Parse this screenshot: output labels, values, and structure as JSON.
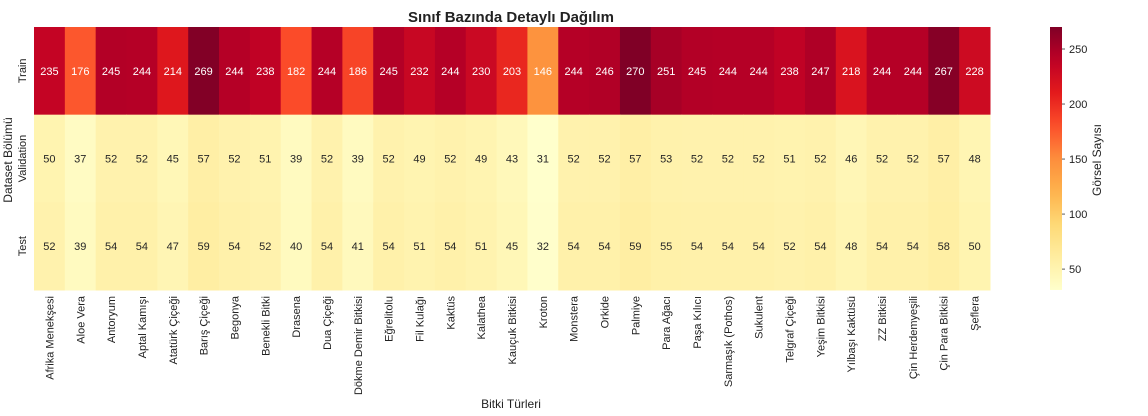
{
  "chart_data": {
    "type": "heatmap",
    "title": "Sınıf Bazında Detaylı Dağılım",
    "xlabel": "Bitki Türleri",
    "ylabel": "Dataset Bölümü",
    "colorbar_label": "Görsel Sayısı",
    "colorbar_ticks": [
      50,
      100,
      150,
      200,
      250
    ],
    "colorbar_range": [
      31,
      270
    ],
    "colormap": "YlOrRd",
    "categories": [
      "Afrika Menekşesi",
      "Aloe Vera",
      "Antoryum",
      "Aptal Kamışı",
      "Atatürk Çiçeği",
      "Barış Çiçeği",
      "Begonya",
      "Benekli Bitki",
      "Drasena",
      "Dua Çiçeği",
      "Dökme Demir Bitkisi",
      "Eğrelitolu",
      "Fil Kulağı",
      "Kaktüs",
      "Kalathea",
      "Kauçuk Bitkisi",
      "Kroton",
      "Monstera",
      "Orkide",
      "Palmiye",
      "Para Ağacı",
      "Paşa Kılıcı",
      "Sarmaşık (Pothos)",
      "Sukulent",
      "Telgraf Çiçeği",
      "Yeşim Bitkisi",
      "Yılbaşı Kaktüsü",
      "ZZ Bitkisi",
      "Çin Herdemyeşili",
      "Çin Para Bitkisi",
      "Şeflera"
    ],
    "rows": [
      "Train",
      "Validation",
      "Test"
    ],
    "values": [
      [
        235,
        176,
        245,
        244,
        214,
        269,
        244,
        238,
        182,
        244,
        186,
        245,
        232,
        244,
        230,
        203,
        146,
        244,
        246,
        270,
        251,
        245,
        244,
        244,
        238,
        247,
        218,
        244,
        244,
        267,
        228
      ],
      [
        50,
        37,
        52,
        52,
        45,
        57,
        52,
        51,
        39,
        52,
        39,
        52,
        49,
        52,
        49,
        43,
        31,
        52,
        52,
        57,
        53,
        52,
        52,
        52,
        51,
        52,
        46,
        52,
        52,
        57,
        48
      ],
      [
        52,
        39,
        54,
        54,
        47,
        59,
        54,
        52,
        40,
        54,
        41,
        54,
        51,
        54,
        51,
        45,
        32,
        54,
        54,
        59,
        55,
        54,
        54,
        54,
        52,
        54,
        48,
        54,
        54,
        58,
        50
      ]
    ]
  }
}
